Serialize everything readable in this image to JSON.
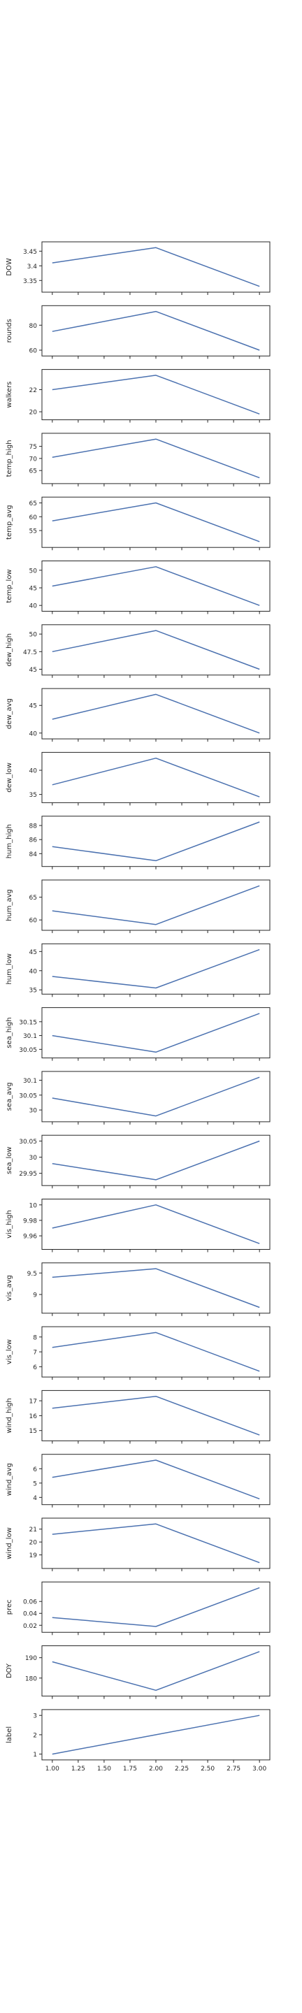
{
  "line_color": "#4c72b0",
  "chart_data": [
    {
      "type": "line",
      "ylabel": "DOW",
      "x": [
        1,
        2,
        3
      ],
      "y": [
        3.41,
        3.462,
        3.33
      ],
      "yticks": [
        3.35,
        3.4,
        3.45
      ]
    },
    {
      "type": "line",
      "ylabel": "rounds",
      "x": [
        1,
        2,
        3
      ],
      "y": [
        75,
        91,
        60
      ],
      "yticks": [
        60,
        80
      ]
    },
    {
      "type": "line",
      "ylabel": "walkers",
      "x": [
        1,
        2,
        3
      ],
      "y": [
        22.0,
        23.3,
        19.8
      ],
      "yticks": [
        20,
        22
      ]
    },
    {
      "type": "line",
      "ylabel": "temp_high",
      "x": [
        1,
        2,
        3
      ],
      "y": [
        70.5,
        78,
        62
      ],
      "yticks": [
        65,
        70,
        75
      ]
    },
    {
      "type": "line",
      "ylabel": "temp_avg",
      "x": [
        1,
        2,
        3
      ],
      "y": [
        58.5,
        65,
        51
      ],
      "yticks": [
        55,
        60,
        65
      ]
    },
    {
      "type": "line",
      "ylabel": "temp_low",
      "x": [
        1,
        2,
        3
      ],
      "y": [
        45.5,
        51,
        40
      ],
      "yticks": [
        40,
        45,
        50
      ]
    },
    {
      "type": "line",
      "ylabel": "dew_high",
      "x": [
        1,
        2,
        3
      ],
      "y": [
        47.5,
        50.5,
        45
      ],
      "yticks": [
        45.0,
        47.5,
        50.0
      ]
    },
    {
      "type": "line",
      "ylabel": "dew_avg",
      "x": [
        1,
        2,
        3
      ],
      "y": [
        42.5,
        47,
        40
      ],
      "yticks": [
        40,
        45
      ]
    },
    {
      "type": "line",
      "ylabel": "dew_low",
      "x": [
        1,
        2,
        3
      ],
      "y": [
        37,
        42.5,
        34.5
      ],
      "yticks": [
        35,
        40
      ]
    },
    {
      "type": "line",
      "ylabel": "hum_high",
      "x": [
        1,
        2,
        3
      ],
      "y": [
        85,
        83,
        88.5
      ],
      "yticks": [
        84,
        86,
        88
      ]
    },
    {
      "type": "line",
      "ylabel": "hum_avg",
      "x": [
        1,
        2,
        3
      ],
      "y": [
        62,
        59,
        67.5
      ],
      "yticks": [
        60,
        65
      ]
    },
    {
      "type": "line",
      "ylabel": "hum_low",
      "x": [
        1,
        2,
        3
      ],
      "y": [
        38.5,
        35.5,
        45.5
      ],
      "yticks": [
        35,
        40,
        45
      ]
    },
    {
      "type": "line",
      "ylabel": "sea_high",
      "x": [
        1,
        2,
        3
      ],
      "y": [
        30.1,
        30.04,
        30.18
      ],
      "yticks": [
        30.05,
        30.1,
        30.15
      ]
    },
    {
      "type": "line",
      "ylabel": "sea_avg",
      "x": [
        1,
        2,
        3
      ],
      "y": [
        30.04,
        29.98,
        30.11
      ],
      "yticks": [
        30.0,
        30.05,
        30.1
      ]
    },
    {
      "type": "line",
      "ylabel": "sea_low",
      "x": [
        1,
        2,
        3
      ],
      "y": [
        29.98,
        29.93,
        30.05
      ],
      "yticks": [
        29.95,
        30.0,
        30.05
      ]
    },
    {
      "type": "line",
      "ylabel": "vis_high",
      "x": [
        1,
        2,
        3
      ],
      "y": [
        9.97,
        10.0,
        9.95
      ],
      "yticks": [
        9.96,
        9.98,
        10.0
      ]
    },
    {
      "type": "line",
      "ylabel": "vis_avg",
      "x": [
        1,
        2,
        3
      ],
      "y": [
        9.4,
        9.6,
        8.7
      ],
      "yticks": [
        9.0,
        9.5
      ]
    },
    {
      "type": "line",
      "ylabel": "vis_low",
      "x": [
        1,
        2,
        3
      ],
      "y": [
        7.3,
        8.3,
        5.7
      ],
      "yticks": [
        6,
        7,
        8
      ]
    },
    {
      "type": "line",
      "ylabel": "wind_high",
      "x": [
        1,
        2,
        3
      ],
      "y": [
        16.5,
        17.3,
        14.7
      ],
      "yticks": [
        15,
        16,
        17
      ]
    },
    {
      "type": "line",
      "ylabel": "wind_avg",
      "x": [
        1,
        2,
        3
      ],
      "y": [
        5.4,
        6.6,
        3.9
      ],
      "yticks": [
        4,
        5,
        6
      ]
    },
    {
      "type": "line",
      "ylabel": "wind_low",
      "x": [
        1,
        2,
        3
      ],
      "y": [
        20.6,
        21.4,
        18.4
      ],
      "yticks": [
        19,
        20,
        21
      ]
    },
    {
      "type": "line",
      "ylabel": "prec",
      "x": [
        1,
        2,
        3
      ],
      "y": [
        0.033,
        0.018,
        0.083
      ],
      "yticks": [
        0.02,
        0.04,
        0.06
      ]
    },
    {
      "type": "line",
      "ylabel": "DOY",
      "x": [
        1,
        2,
        3
      ],
      "y": [
        188,
        174,
        193
      ],
      "yticks": [
        180,
        190
      ]
    },
    {
      "type": "line",
      "ylabel": "label",
      "x": [
        1,
        2,
        3
      ],
      "y": [
        1,
        2,
        3
      ],
      "yticks": [
        1,
        2,
        3
      ],
      "xticks": [
        "1.00",
        "1.25",
        "1.50",
        "1.75",
        "2.00",
        "2.25",
        "2.50",
        "2.75",
        "3.00"
      ]
    }
  ]
}
